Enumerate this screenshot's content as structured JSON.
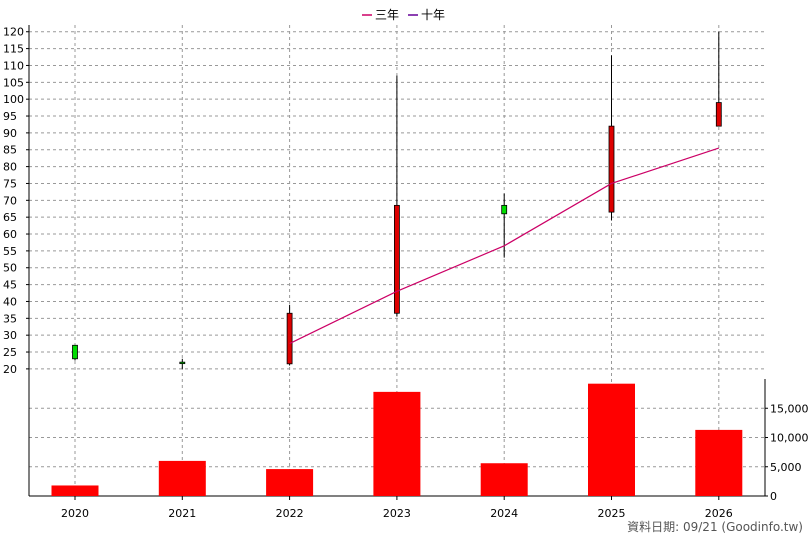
{
  "chart_data": {
    "type": "candlestick+bar",
    "legend": [
      {
        "label": "三年",
        "color": "#cc0066"
      },
      {
        "label": "十年",
        "color": "#660099"
      }
    ],
    "years": [
      "2020",
      "2021",
      "2022",
      "2023",
      "2024",
      "2025",
      "2026"
    ],
    "price_axis": {
      "range": [
        17,
        122
      ],
      "ticks": [
        20,
        25,
        30,
        35,
        40,
        45,
        50,
        55,
        60,
        65,
        70,
        75,
        80,
        85,
        90,
        95,
        100,
        105,
        110,
        115,
        120
      ]
    },
    "candles": [
      {
        "year": "2020",
        "open": 23,
        "close": 27,
        "high": 27,
        "low": 22.5
      },
      {
        "year": "2021",
        "open": 22,
        "close": 22,
        "high": 23,
        "low": 20
      },
      {
        "year": "2022",
        "open": 36.5,
        "close": 21.5,
        "high": 39,
        "low": 21
      },
      {
        "year": "2023",
        "open": 68.5,
        "close": 36.5,
        "high": 107,
        "low": 35.5
      },
      {
        "year": "2024",
        "open": 66,
        "close": 68.5,
        "high": 72,
        "low": 53
      },
      {
        "year": "2025",
        "open": 92,
        "close": 66.5,
        "high": 113,
        "low": 64
      },
      {
        "year": "2026",
        "open": 99,
        "close": 92,
        "high": 120,
        "low": 92
      }
    ],
    "candle_colors": {
      "up": "#00dd00",
      "down": "#dd0000"
    },
    "three_year_line": {
      "name": "三年",
      "x": [
        "2022",
        "2023",
        "2024",
        "2025",
        "2026"
      ],
      "y": [
        27.5,
        43,
        56.5,
        75,
        85.5
      ]
    },
    "volume_axis": {
      "range": [
        0,
        20000
      ],
      "ticks": [
        0,
        5000,
        10000,
        15000
      ],
      "tick_labels": [
        "0",
        "5,000",
        "10,000",
        "15,000"
      ]
    },
    "volumes": [
      1800,
      6000,
      4600,
      17800,
      5600,
      19200,
      11300
    ],
    "volume_color": "#ff0000",
    "grid": true
  },
  "footer": "資料日期: 09/21  (Goodinfo.tw)"
}
